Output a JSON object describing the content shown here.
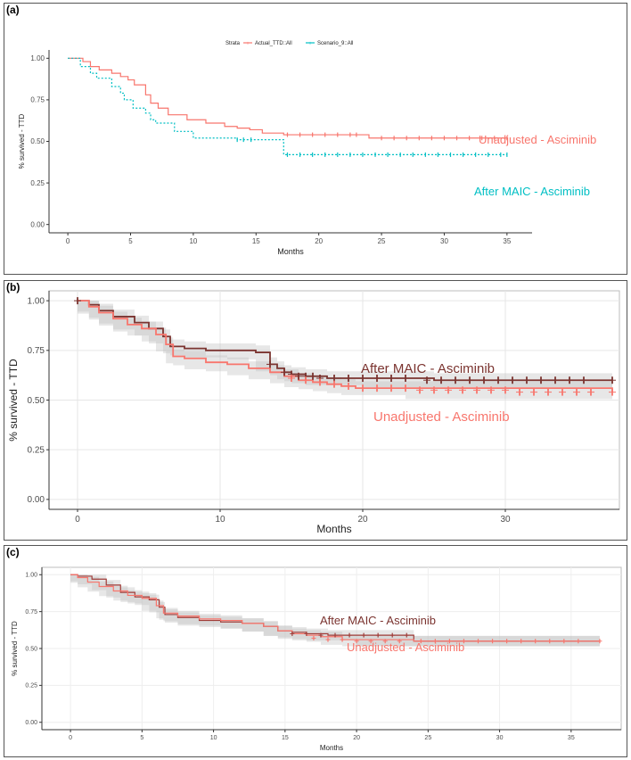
{
  "panels": [
    {
      "label": "(a)",
      "legend": {
        "title": "Strata",
        "entries": [
          {
            "name": "Actual_TTD::All",
            "color": "#f8766d"
          },
          {
            "name": "Scenario_9::All",
            "color": "#00bfc4"
          }
        ]
      }
    },
    {
      "label": "(b)"
    },
    {
      "label": "(c)"
    }
  ],
  "chart_data": [
    {
      "type": "line",
      "title": "",
      "xlabel": "Months",
      "ylabel": "% survived - TTD",
      "xlim": [
        -1.5,
        37
      ],
      "ylim": [
        -0.05,
        1.05
      ],
      "xticks": [
        0,
        5,
        10,
        15,
        20,
        25,
        30,
        35
      ],
      "yticks": [
        "0.00",
        "0.25",
        "0.50",
        "0.75",
        "1.00"
      ],
      "grid": false,
      "colors": {
        "unadjusted": "#f8766d",
        "maic": "#00bfc4"
      },
      "annotations": [
        "Unadjusted - Asciminib",
        "After MAIC - Asciminib"
      ],
      "series": [
        {
          "name": "Unadjusted - Asciminib",
          "color": "#f8766d",
          "dashed": false,
          "x": [
            0,
            1.2,
            1.8,
            2.5,
            3.5,
            4.2,
            4.8,
            5.3,
            6.2,
            6.6,
            7.2,
            8.0,
            9.5,
            11.0,
            12.5,
            13.5,
            14.5,
            15.5,
            17.2,
            20.0,
            24.0,
            35.0
          ],
          "y": [
            1.0,
            0.98,
            0.95,
            0.93,
            0.91,
            0.89,
            0.87,
            0.84,
            0.78,
            0.73,
            0.7,
            0.66,
            0.63,
            0.61,
            0.59,
            0.58,
            0.57,
            0.55,
            0.54,
            0.54,
            0.52,
            0.52
          ]
        },
        {
          "name": "After MAIC - Asciminib",
          "color": "#00bfc4",
          "dashed": true,
          "x": [
            0,
            1.0,
            1.8,
            2.3,
            3.5,
            4.2,
            4.5,
            5.2,
            6.2,
            6.6,
            7.0,
            8.5,
            10.0,
            13.5,
            17.2,
            35.0
          ],
          "y": [
            1.0,
            0.95,
            0.91,
            0.88,
            0.83,
            0.79,
            0.75,
            0.7,
            0.67,
            0.63,
            0.61,
            0.56,
            0.52,
            0.51,
            0.42,
            0.42
          ]
        }
      ],
      "censors": [
        {
          "series": "Unadjusted - Asciminib",
          "x": [
            17.5,
            18.5,
            19.5,
            20.5,
            21.5,
            22.5,
            23.0,
            25.0,
            26.0,
            27.0,
            28.0,
            29.0,
            30.0,
            31.0,
            32.0,
            33.0,
            34.0,
            35.0
          ],
          "y": [
            0.54,
            0.54,
            0.54,
            0.54,
            0.54,
            0.54,
            0.54,
            0.52,
            0.52,
            0.52,
            0.52,
            0.52,
            0.52,
            0.52,
            0.52,
            0.52,
            0.52,
            0.52
          ]
        },
        {
          "series": "After MAIC - Asciminib",
          "x": [
            13.5,
            14.0,
            14.6,
            17.5,
            18.5,
            19.5,
            20.5,
            21.5,
            22.5,
            23.5,
            24.5,
            25.5,
            26.5,
            27.5,
            28.5,
            29.5,
            30.5,
            31.5,
            32.5,
            33.5,
            34.5,
            35.0
          ],
          "y": [
            0.51,
            0.51,
            0.51,
            0.42,
            0.42,
            0.42,
            0.42,
            0.42,
            0.42,
            0.42,
            0.42,
            0.42,
            0.42,
            0.42,
            0.42,
            0.42,
            0.42,
            0.42,
            0.42,
            0.42,
            0.42,
            0.42
          ]
        }
      ]
    },
    {
      "type": "line",
      "title": "",
      "xlabel": "Months",
      "ylabel": "% survived - TTD",
      "xlim": [
        -2,
        38
      ],
      "ylim": [
        -0.05,
        1.05
      ],
      "xticks": [
        0,
        10,
        20,
        30
      ],
      "yticks": [
        "0.00",
        "0.25",
        "0.50",
        "0.75",
        "1.00"
      ],
      "grid": true,
      "colors": {
        "unadjusted": "#f8766d",
        "maic": "#7b3430"
      },
      "annotations": [
        "After MAIC - Asciminib",
        "Unadjusted - Asciminib"
      ],
      "series": [
        {
          "name": "After MAIC - Asciminib",
          "color": "#7b3430",
          "dashed": false,
          "x": [
            0,
            0.8,
            1.5,
            2.5,
            4.0,
            5.0,
            6.0,
            6.5,
            7.5,
            9.0,
            10.5,
            12.5,
            13.5,
            14.0,
            14.5,
            15.0,
            16.0,
            17.5,
            20.0,
            25.0,
            37.5
          ],
          "y": [
            1.0,
            0.98,
            0.95,
            0.92,
            0.89,
            0.86,
            0.82,
            0.77,
            0.76,
            0.75,
            0.75,
            0.74,
            0.68,
            0.66,
            0.64,
            0.63,
            0.62,
            0.61,
            0.61,
            0.6,
            0.6
          ]
        },
        {
          "name": "Unadjusted - Asciminib",
          "color": "#f8766d",
          "dashed": false,
          "x": [
            0,
            0.8,
            1.5,
            2.5,
            3.5,
            4.5,
            5.5,
            6.2,
            6.7,
            7.5,
            9.0,
            10.5,
            12.0,
            13.5,
            14.5,
            15.5,
            16.5,
            17.5,
            18.5,
            19.5,
            23.0,
            37.5
          ],
          "y": [
            1.0,
            0.97,
            0.94,
            0.91,
            0.88,
            0.86,
            0.83,
            0.78,
            0.72,
            0.71,
            0.69,
            0.68,
            0.66,
            0.64,
            0.62,
            0.6,
            0.59,
            0.58,
            0.57,
            0.56,
            0.56,
            0.54
          ]
        }
      ],
      "censors": [
        {
          "series": "After MAIC - Asciminib",
          "x": [
            0,
            13.5,
            14.5,
            15.0,
            15.5,
            16.0,
            16.5,
            17.0,
            18.0,
            19.0,
            20.0,
            21.0,
            22.0,
            23.0,
            24.5,
            25.5,
            26.5,
            27.5,
            28.5,
            29.5,
            30.5,
            31.5,
            32.5,
            33.5,
            34.5,
            35.5,
            37.5
          ],
          "y": [
            1.0,
            0.68,
            0.64,
            0.63,
            0.62,
            0.62,
            0.62,
            0.61,
            0.61,
            0.61,
            0.61,
            0.61,
            0.61,
            0.61,
            0.6,
            0.6,
            0.6,
            0.6,
            0.6,
            0.6,
            0.6,
            0.6,
            0.6,
            0.6,
            0.6,
            0.6,
            0.6
          ]
        },
        {
          "series": "Unadjusted - Asciminib",
          "x": [
            15.0,
            16.0,
            17.0,
            18.0,
            19.0,
            20.0,
            21.0,
            22.0,
            23.0,
            24.0,
            25.0,
            26.0,
            27.0,
            28.0,
            29.0,
            30.0,
            31.0,
            32.0,
            33.0,
            34.0,
            35.0,
            36.0,
            37.5
          ],
          "y": [
            0.61,
            0.6,
            0.59,
            0.58,
            0.57,
            0.56,
            0.56,
            0.56,
            0.56,
            0.55,
            0.55,
            0.55,
            0.55,
            0.55,
            0.55,
            0.55,
            0.54,
            0.54,
            0.54,
            0.54,
            0.54,
            0.54,
            0.54
          ]
        }
      ]
    },
    {
      "type": "line",
      "title": "",
      "xlabel": "Months",
      "ylabel": "% survived - TTD",
      "xlim": [
        -2,
        38.5
      ],
      "ylim": [
        -0.05,
        1.05
      ],
      "xticks": [
        0,
        5,
        10,
        15,
        20,
        25,
        30,
        35
      ],
      "yticks": [
        "0.00",
        "0.25",
        "0.50",
        "0.75",
        "1.00"
      ],
      "grid": true,
      "colors": {
        "unadjusted": "#f8766d",
        "maic": "#c0504d"
      },
      "annotations": [
        "After MAIC - Asciminib",
        "Unadjusted - Asciminib"
      ],
      "series": [
        {
          "name": "After MAIC - Asciminib",
          "color": "#a03c38",
          "dashed": false,
          "x": [
            0,
            0.5,
            1.5,
            2.5,
            3.5,
            4.5,
            5.5,
            6.2,
            6.6,
            7.5,
            9.0,
            10.5,
            12.0,
            13.5,
            14.5,
            15.5,
            16.5,
            18.0,
            20.0,
            24.0,
            37.0
          ],
          "y": [
            1.0,
            0.99,
            0.97,
            0.93,
            0.88,
            0.85,
            0.83,
            0.78,
            0.73,
            0.71,
            0.69,
            0.68,
            0.67,
            0.65,
            0.62,
            0.61,
            0.6,
            0.59,
            0.59,
            0.55,
            0.55
          ]
        },
        {
          "name": "Unadjusted - Asciminib",
          "color": "#f8766d",
          "dashed": false,
          "x": [
            0,
            0.5,
            1.2,
            2.0,
            3.0,
            4.0,
            5.0,
            6.0,
            6.5,
            7.5,
            9.0,
            10.5,
            12.0,
            13.5,
            14.5,
            15.5,
            16.5,
            17.5,
            19.0,
            24.0,
            37.0
          ],
          "y": [
            1.0,
            0.98,
            0.95,
            0.92,
            0.89,
            0.86,
            0.84,
            0.79,
            0.74,
            0.72,
            0.7,
            0.69,
            0.67,
            0.65,
            0.62,
            0.6,
            0.59,
            0.58,
            0.56,
            0.55,
            0.55
          ]
        }
      ],
      "censors": [
        {
          "series": "After MAIC - Asciminib",
          "x": [
            15.5,
            16.5,
            17.5,
            18.5,
            19.5,
            20.5,
            21.5,
            22.5,
            23.5
          ],
          "y": [
            0.6,
            0.6,
            0.59,
            0.59,
            0.59,
            0.59,
            0.59,
            0.59,
            0.59
          ]
        },
        {
          "series": "Unadjusted - Asciminib",
          "x": [
            17.0,
            18.0,
            19.0,
            20.0,
            21.0,
            22.0,
            23.0,
            24.5,
            25.5,
            26.5,
            27.5,
            28.5,
            29.5,
            30.5,
            31.5,
            32.5,
            33.5,
            34.5,
            35.5,
            37.0
          ],
          "y": [
            0.57,
            0.56,
            0.56,
            0.55,
            0.55,
            0.55,
            0.55,
            0.55,
            0.55,
            0.55,
            0.55,
            0.55,
            0.55,
            0.55,
            0.55,
            0.55,
            0.55,
            0.55,
            0.55,
            0.55
          ]
        }
      ]
    }
  ]
}
